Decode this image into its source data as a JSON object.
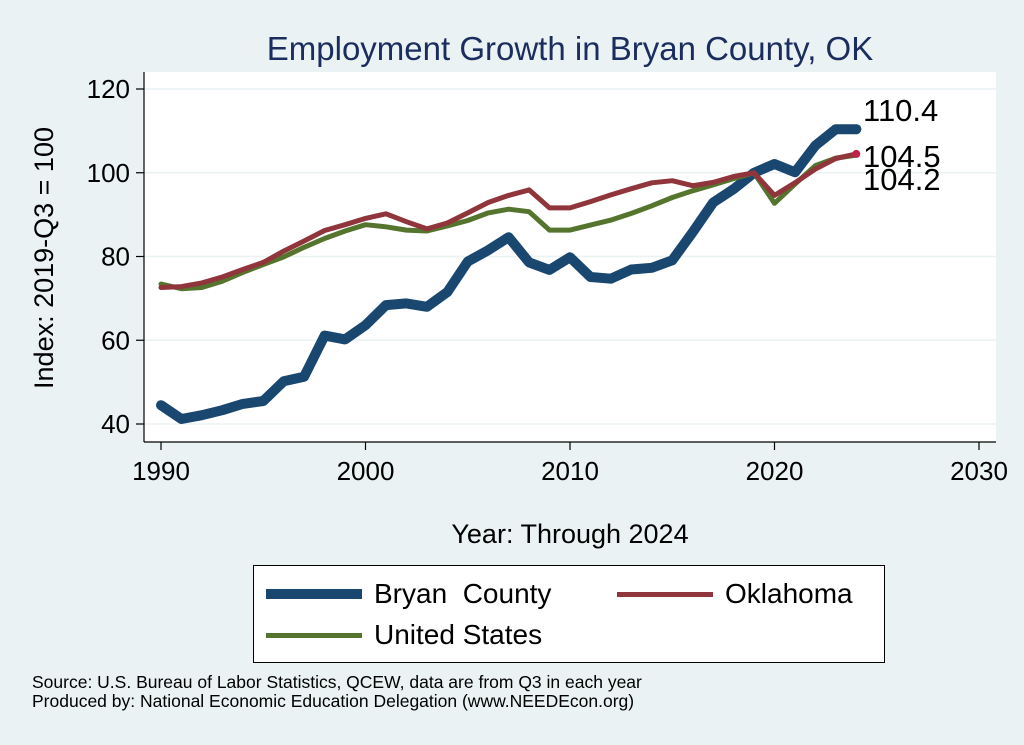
{
  "chart_data": {
    "type": "line",
    "title": "Employment Growth in Bryan County, OK",
    "xlabel": "Year: Through 2024",
    "ylabel": "Index: 2019-Q3 = 100",
    "xlim": [
      1990,
      2030
    ],
    "ylim": [
      40,
      120
    ],
    "xticks": [
      1990,
      2000,
      2010,
      2020,
      2030
    ],
    "yticks": [
      40,
      60,
      80,
      100,
      120
    ],
    "grid": true,
    "legend_position": "bottom",
    "x": [
      1990,
      1991,
      1992,
      1993,
      1994,
      1995,
      1996,
      1997,
      1998,
      1999,
      2000,
      2001,
      2002,
      2003,
      2004,
      2005,
      2006,
      2007,
      2008,
      2009,
      2010,
      2011,
      2012,
      2013,
      2014,
      2015,
      2016,
      2017,
      2018,
      2019,
      2020,
      2021,
      2022,
      2023,
      2024
    ],
    "series": [
      {
        "name": "Bryan  County",
        "color": "#1a476f",
        "values": [
          44.5,
          41.2,
          42.1,
          43.3,
          44.8,
          45.5,
          50.2,
          51.3,
          61.1,
          60.2,
          63.6,
          68.4,
          68.8,
          68.0,
          71.5,
          78.8,
          81.5,
          84.6,
          78.6,
          76.8,
          79.8,
          75.1,
          74.7,
          76.9,
          77.3,
          79.1,
          85.8,
          92.9,
          96.1,
          100.0,
          102.1,
          100.1,
          106.5,
          110.4,
          110.4
        ],
        "end_label": "110.4"
      },
      {
        "name": "Oklahoma",
        "color": "#90353b",
        "values": [
          72.6,
          72.8,
          73.7,
          75.1,
          76.9,
          78.6,
          81.3,
          83.7,
          86.2,
          87.6,
          89.1,
          90.2,
          88.3,
          86.6,
          88.0,
          90.4,
          92.9,
          94.6,
          95.9,
          91.6,
          91.6,
          93.1,
          94.7,
          96.2,
          97.6,
          98.1,
          96.9,
          97.7,
          99.1,
          100.0,
          94.6,
          97.6,
          100.9,
          103.4,
          104.5
        ],
        "end_label": "104.5"
      },
      {
        "name": "United States",
        "color": "#55752f",
        "values": [
          73.4,
          72.3,
          72.6,
          74.1,
          76.2,
          78.1,
          79.9,
          82.2,
          84.3,
          86.1,
          87.6,
          87.1,
          86.3,
          86.1,
          87.3,
          88.6,
          90.4,
          91.3,
          90.7,
          86.3,
          86.3,
          87.5,
          88.7,
          90.3,
          92.1,
          94.1,
          95.7,
          97.1,
          98.6,
          100.0,
          92.7,
          97.3,
          101.7,
          103.5,
          104.2
        ],
        "end_label": "104.2"
      }
    ]
  },
  "notes": {
    "source": "Source: U.S. Bureau of Labor Statistics, QCEW, data are from Q3 in each year",
    "producer": "Produced by: National Economic Education Delegation (www.NEEDEcon.org)"
  }
}
